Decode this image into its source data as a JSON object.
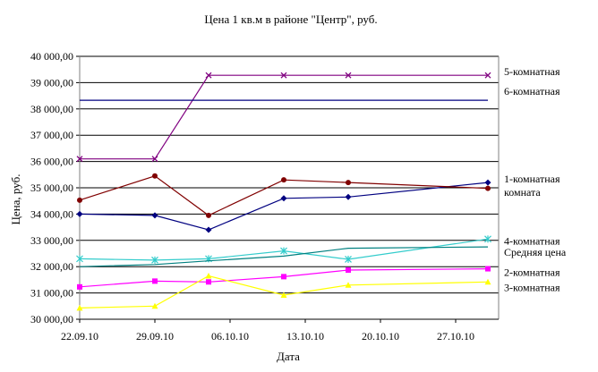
{
  "chart_data": {
    "type": "line",
    "title": "Цена 1 кв.м в районе \"Центр\", руб.",
    "xlabel": "Дата",
    "ylabel": "Цена, руб.",
    "ylim": [
      30000,
      40000
    ],
    "y_ticks": [
      30000,
      31000,
      32000,
      33000,
      34000,
      35000,
      36000,
      37000,
      38000,
      39000,
      40000
    ],
    "y_tick_labels": [
      "30 000,00",
      "31 000,00",
      "32 000,00",
      "33 000,00",
      "34 000,00",
      "35 000,00",
      "36 000,00",
      "37 000,00",
      "38 000,00",
      "39 000,00",
      "40 000,00"
    ],
    "x_range": [
      "2010-09-22",
      "2010-10-31"
    ],
    "x_ticks": [
      "2010-09-22",
      "2010-09-29",
      "2010-10-06",
      "2010-10-13",
      "2010-10-20",
      "2010-10-27"
    ],
    "x_tick_labels": [
      "22.09.10",
      "29.09.10",
      "06.10.10",
      "13.10.10",
      "20.10.10",
      "27.10.10"
    ],
    "grid": "horizontal",
    "legend": "right",
    "series": [
      {
        "name": "5-комнатная",
        "label_lines": [
          "5-комнатная"
        ],
        "color": "#800080",
        "marker": "x",
        "x": [
          "2010-09-22",
          "2010-09-29",
          "2010-10-04",
          "2010-10-11",
          "2010-10-17",
          "2010-10-30"
        ],
        "y": [
          36100,
          36100,
          39280,
          39280,
          39280,
          39280
        ]
      },
      {
        "name": "6-комнатная",
        "label_lines": [
          "6-комнатная"
        ],
        "color": "#000080",
        "marker": "none",
        "x": [
          "2010-09-22",
          "2010-10-30"
        ],
        "y": [
          38330,
          38330
        ]
      },
      {
        "name": "1-комнатная комната",
        "label_lines": [
          "1-комнатная",
          "комната"
        ],
        "color": "#000080",
        "marker": "diamond",
        "x": [
          "2010-09-22",
          "2010-09-29",
          "2010-10-04",
          "2010-10-11",
          "2010-10-17",
          "2010-10-30"
        ],
        "y": [
          34000,
          33950,
          33400,
          34600,
          34650,
          35200
        ]
      },
      {
        "name": "",
        "label_lines": [],
        "color": "#800000",
        "marker": "circle",
        "x": [
          "2010-09-22",
          "2010-09-29",
          "2010-10-04",
          "2010-10-11",
          "2010-10-17",
          "2010-10-30"
        ],
        "y": [
          34530,
          35450,
          33950,
          35300,
          35200,
          34980
        ]
      },
      {
        "name": "4-комнатная",
        "label_lines": [
          "4-комнатная"
        ],
        "color": "#33cccc",
        "marker": "star",
        "x": [
          "2010-09-22",
          "2010-09-29",
          "2010-10-04",
          "2010-10-11",
          "2010-10-17",
          "2010-10-30"
        ],
        "y": [
          32300,
          32250,
          32300,
          32600,
          32280,
          33050
        ]
      },
      {
        "name": "Средняя цена",
        "label_lines": [
          "Средняя цена"
        ],
        "color": "#008080",
        "marker": "none",
        "x": [
          "2010-09-22",
          "2010-09-29",
          "2010-10-04",
          "2010-10-11",
          "2010-10-17",
          "2010-10-30"
        ],
        "y": [
          32000,
          32080,
          32220,
          32400,
          32700,
          32750
        ]
      },
      {
        "name": "2-комнатная",
        "label_lines": [
          "2-комнатная"
        ],
        "color": "#ff00ff",
        "marker": "square",
        "x": [
          "2010-09-22",
          "2010-09-29",
          "2010-10-04",
          "2010-10-11",
          "2010-10-17",
          "2010-10-30"
        ],
        "y": [
          31230,
          31450,
          31420,
          31620,
          31870,
          31920
        ]
      },
      {
        "name": "3-комнатная",
        "label_lines": [
          "3-комнатная"
        ],
        "color": "#ffff00",
        "marker": "triangle",
        "x": [
          "2010-09-22",
          "2010-09-29",
          "2010-10-04",
          "2010-10-11",
          "2010-10-17",
          "2010-10-30"
        ],
        "y": [
          30430,
          30500,
          31650,
          30920,
          31300,
          31420
        ]
      }
    ]
  }
}
